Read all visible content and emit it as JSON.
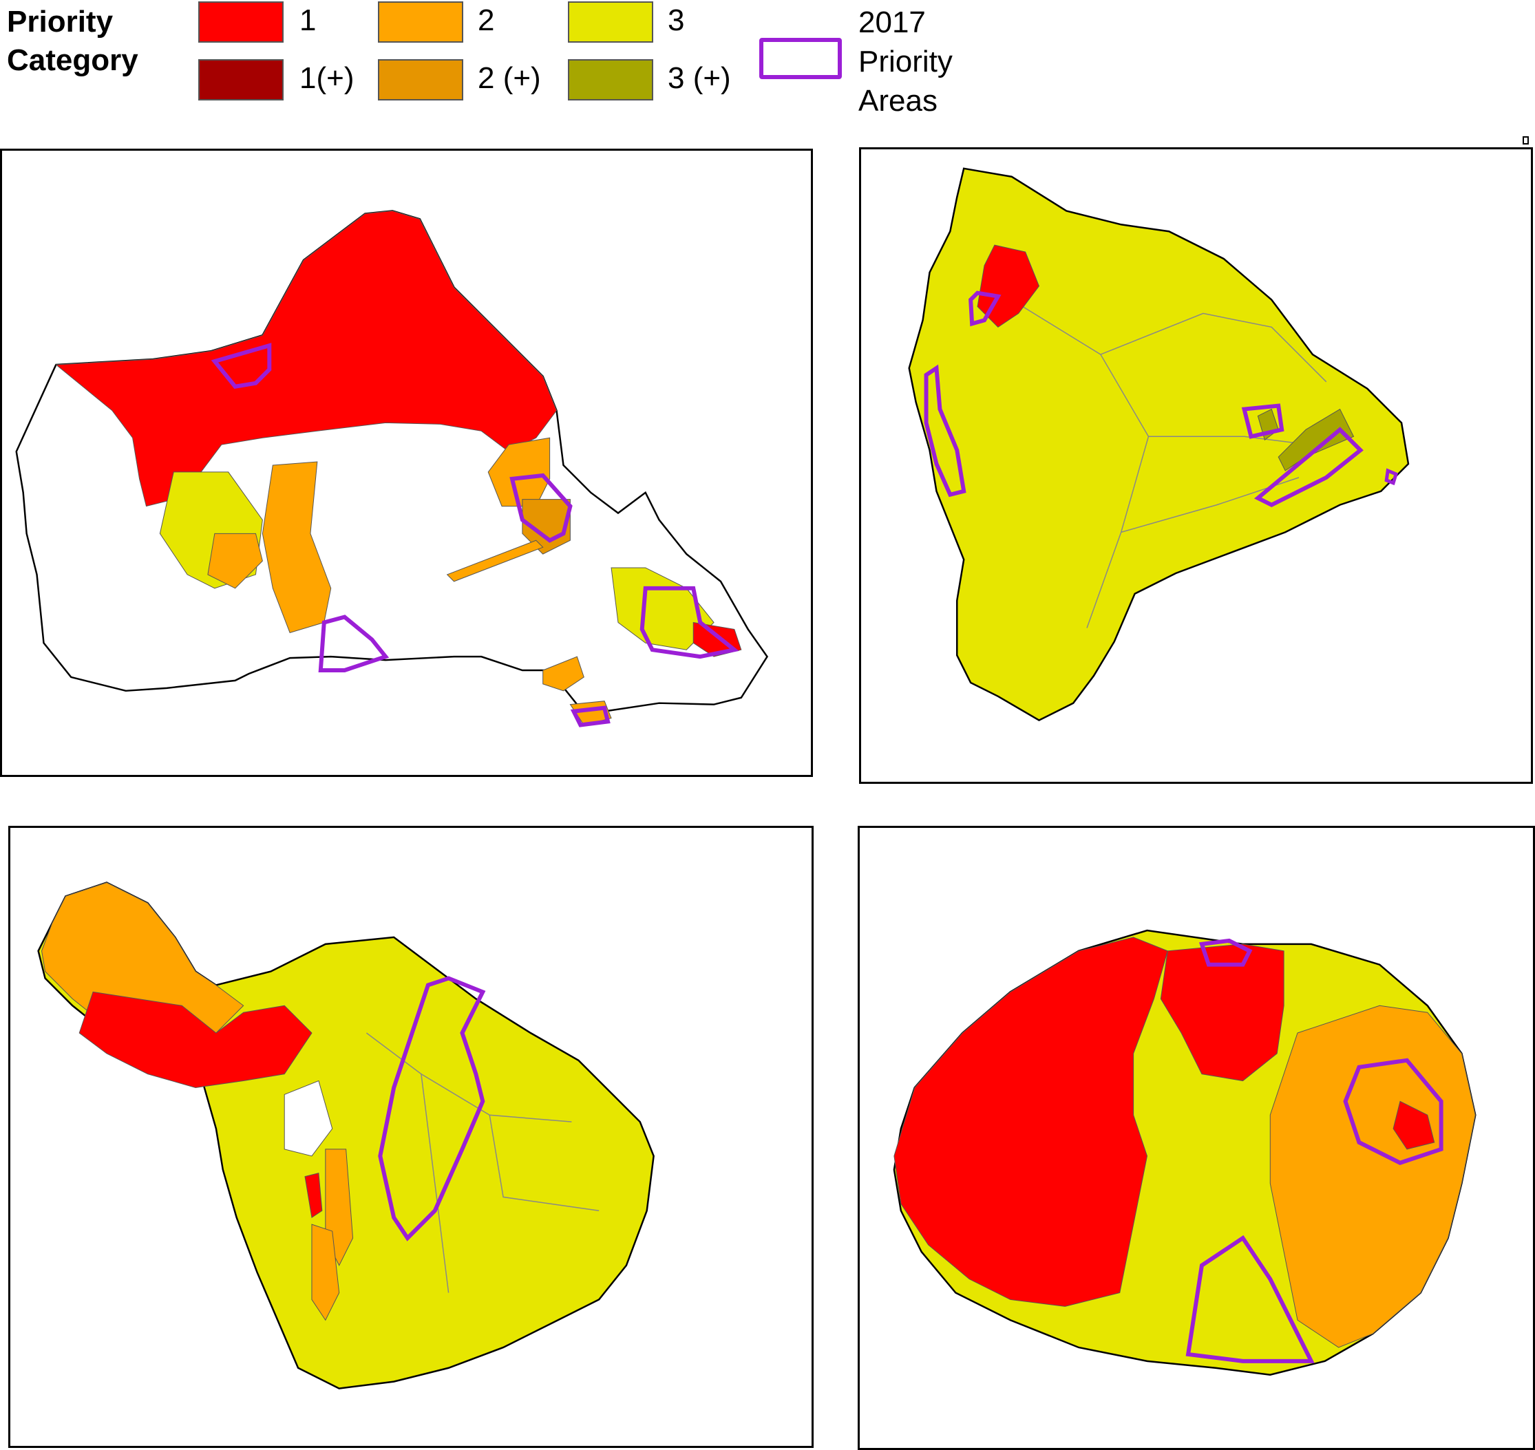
{
  "legend": {
    "title": "Priority\nCategory",
    "items": [
      {
        "label": "1",
        "color": "#ff0000"
      },
      {
        "label": "2",
        "color": "#ffa500"
      },
      {
        "label": "3",
        "color": "#e6e600"
      },
      {
        "label": "1(+)",
        "color": "#a50000"
      },
      {
        "label": "2 (+)",
        "color": "#e69500"
      },
      {
        "label": "3 (+)",
        "color": "#a6a600"
      }
    ],
    "priority_areas": {
      "label": "2017\nPriority\nAreas",
      "color": "#9b1fd6"
    }
  },
  "maps": [
    {
      "island": "oahu"
    },
    {
      "island": "hawaii"
    },
    {
      "island": "maui"
    },
    {
      "island": "kauai"
    }
  ]
}
